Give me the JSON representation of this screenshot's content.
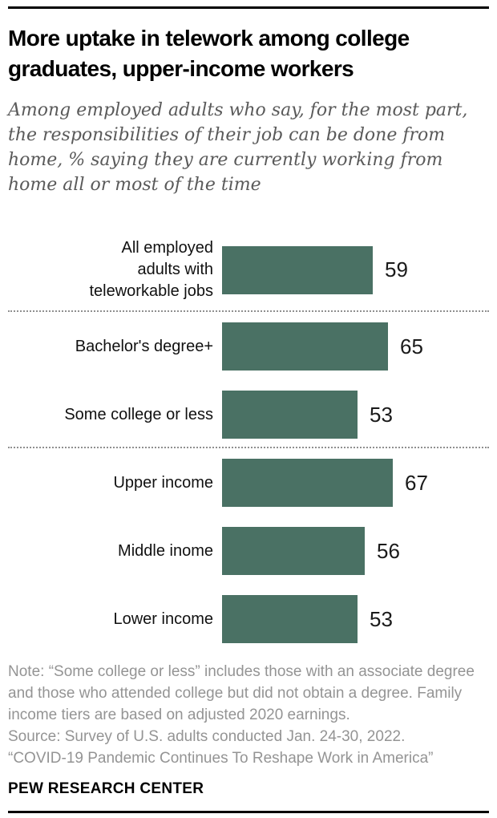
{
  "header": {
    "title": "More uptake in telework among college graduates, upper-income workers",
    "subtitle": "Among employed adults who say, for the most part, the responsibilities of their job can be done from home, % saying they are currently working from home all or most of the time"
  },
  "chart_data": {
    "type": "bar",
    "orientation": "horizontal",
    "title": "More uptake in telework among college graduates, upper-income workers",
    "categories": [
      "All employed adults with teleworkable jobs",
      "Bachelor's degree+",
      "Some college or less",
      "Upper income",
      "Middle inome",
      "Lower income"
    ],
    "values": [
      59,
      65,
      53,
      67,
      56,
      53
    ],
    "xlim": [
      0,
      100
    ],
    "xlabel": "",
    "ylabel": "",
    "grid": false,
    "legend_position": "none",
    "bar_color": "#4a7164",
    "data_labels_shown": true,
    "groups": [
      [
        0
      ],
      [
        1,
        2
      ],
      [
        3,
        4,
        5
      ]
    ],
    "group_separator_style": "dotted-rule",
    "rows": [
      {
        "label": "All employed\nadults with\nteleworkable jobs",
        "value": "59"
      },
      {
        "label": "Bachelor's degree+",
        "value": "65"
      },
      {
        "label": "Some college or less",
        "value": "53"
      },
      {
        "label": "Upper income",
        "value": "67"
      },
      {
        "label": "Middle inome",
        "value": "56"
      },
      {
        "label": "Lower income",
        "value": "53"
      }
    ]
  },
  "footer": {
    "note": "Note: “Some college or less” includes those with an associate degree and those who attended college but did not obtain a degree. Family income tiers are based on adjusted 2020 earnings.",
    "source": "Source: Survey of U.S. adults conducted Jan. 24-30, 2022.",
    "report_title": "“COVID-19 Pandemic Continues To Reshape Work in America”",
    "brand": "PEW RESEARCH CENTER"
  }
}
